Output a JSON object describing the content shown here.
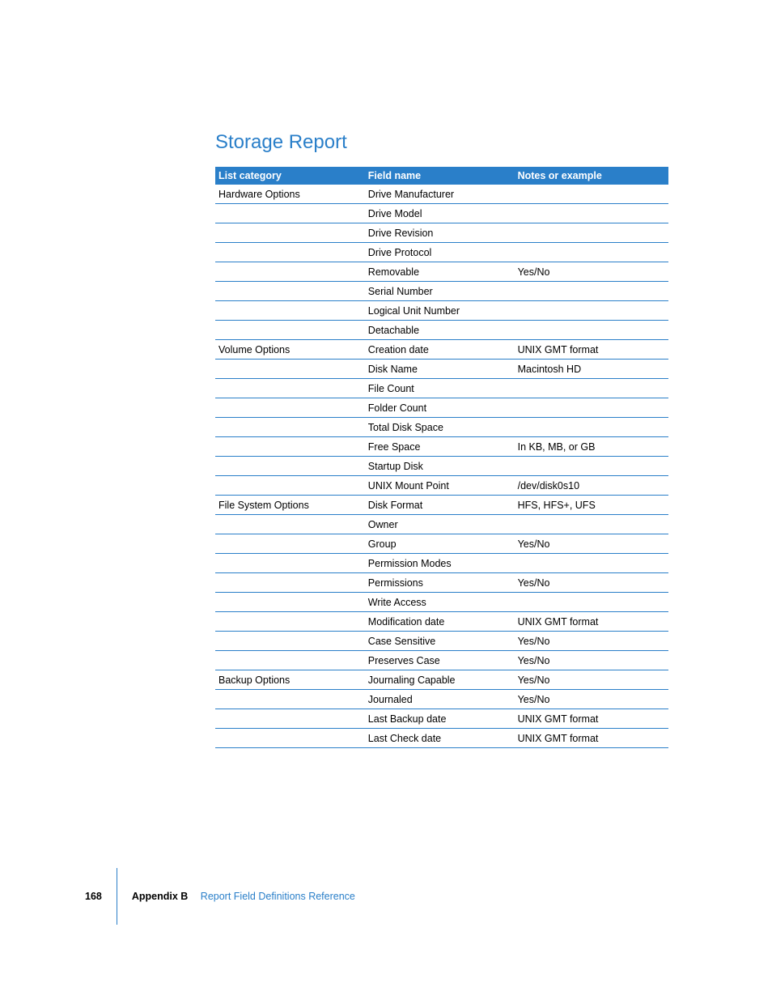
{
  "title": "Storage Report",
  "table": {
    "columns": [
      "List category",
      "Field name",
      "Notes or example"
    ],
    "rows": [
      [
        "Hardware Options",
        "Drive Manufacturer",
        ""
      ],
      [
        "",
        "Drive Model",
        ""
      ],
      [
        "",
        "Drive Revision",
        ""
      ],
      [
        "",
        "Drive Protocol",
        ""
      ],
      [
        "",
        "Removable",
        "Yes/No"
      ],
      [
        "",
        "Serial Number",
        ""
      ],
      [
        "",
        "Logical Unit Number",
        ""
      ],
      [
        "",
        "Detachable",
        ""
      ],
      [
        "Volume Options",
        "Creation date",
        "UNIX GMT format"
      ],
      [
        "",
        "Disk Name",
        "Macintosh HD"
      ],
      [
        "",
        "File Count",
        ""
      ],
      [
        "",
        "Folder Count",
        ""
      ],
      [
        "",
        "Total Disk Space",
        ""
      ],
      [
        "",
        "Free Space",
        "In KB, MB, or GB"
      ],
      [
        "",
        "Startup Disk",
        ""
      ],
      [
        "",
        "UNIX Mount Point",
        "/dev/disk0s10"
      ],
      [
        "File System Options",
        "Disk Format",
        "HFS, HFS+, UFS"
      ],
      [
        "",
        "Owner",
        ""
      ],
      [
        "",
        "Group",
        "Yes/No"
      ],
      [
        "",
        "Permission Modes",
        ""
      ],
      [
        "",
        "Permissions",
        "Yes/No"
      ],
      [
        "",
        "Write Access",
        ""
      ],
      [
        "",
        "Modification date",
        "UNIX GMT format"
      ],
      [
        "",
        "Case Sensitive",
        "Yes/No"
      ],
      [
        "",
        "Preserves Case",
        "Yes/No"
      ],
      [
        "Backup Options",
        "Journaling Capable",
        "Yes/No"
      ],
      [
        "",
        "Journaled",
        "Yes/No"
      ],
      [
        "",
        "Last Backup date",
        "UNIX GMT format"
      ],
      [
        "",
        "Last Check date",
        "UNIX GMT format"
      ]
    ]
  },
  "footer": {
    "page_number": "168",
    "appendix": "Appendix B",
    "subtitle": "Report Field Definitions Reference"
  },
  "colors": {
    "accent": "#2a7fc9",
    "text": "#000000",
    "background": "#ffffff"
  }
}
